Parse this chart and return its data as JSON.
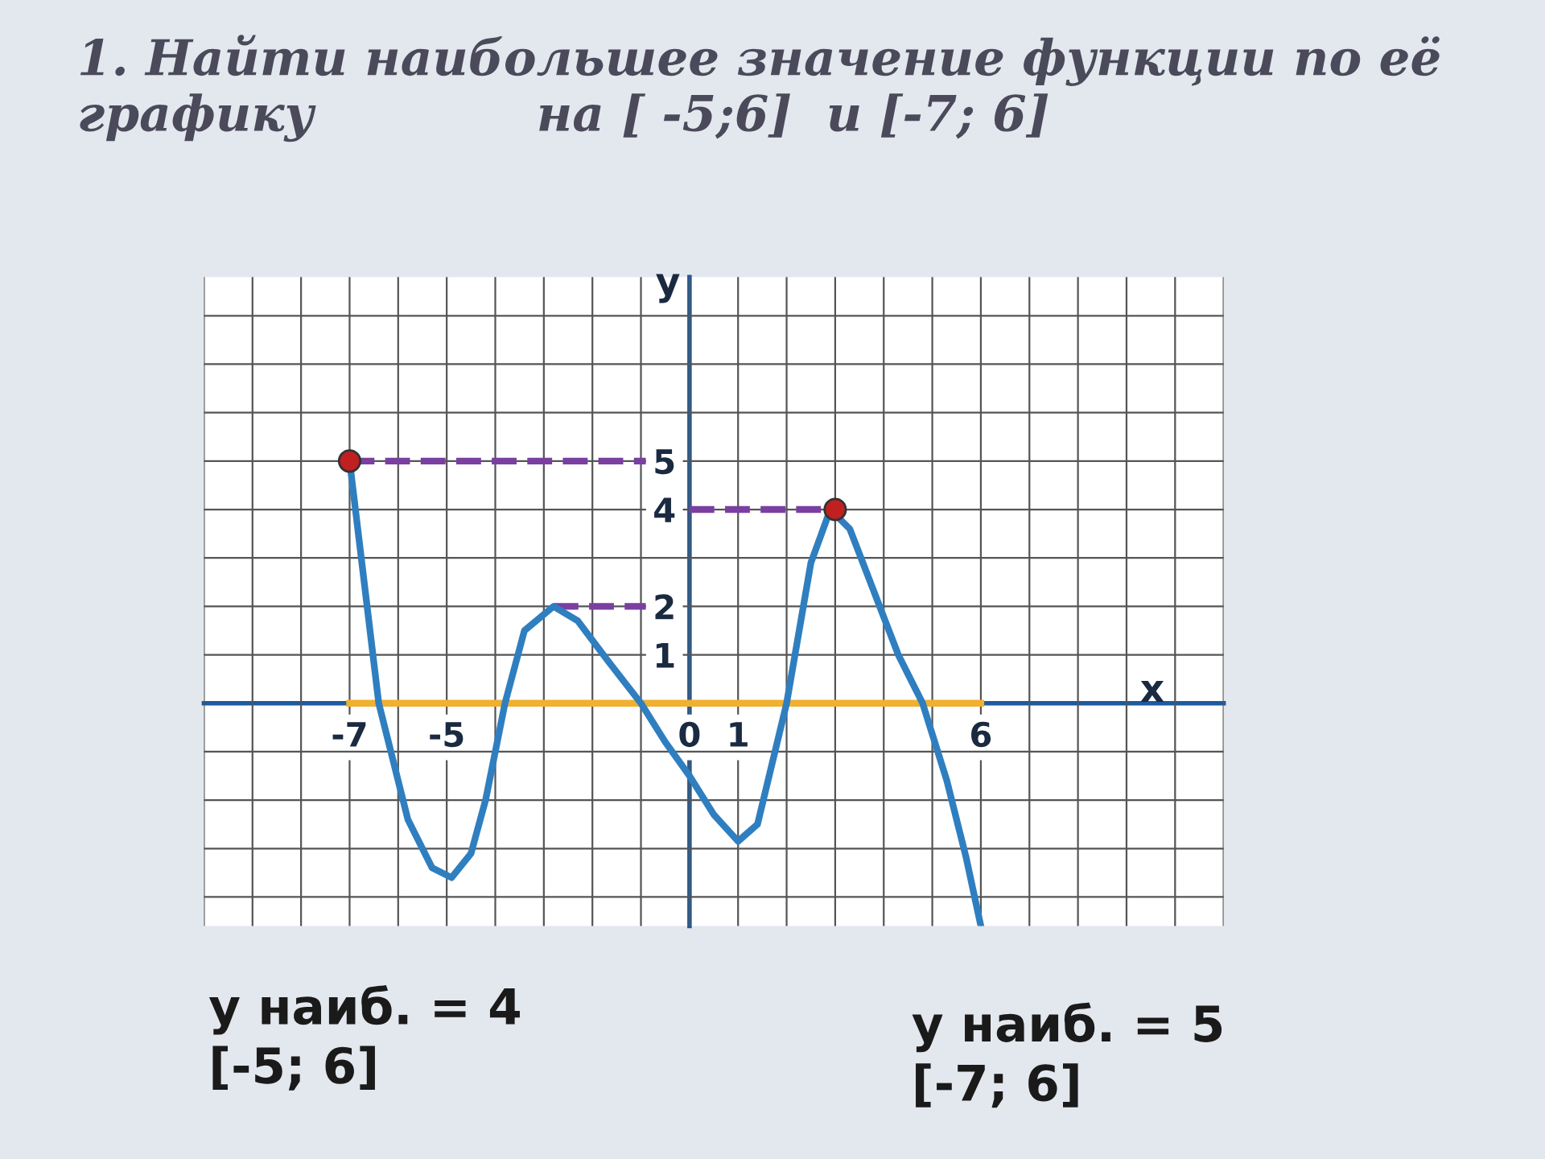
{
  "chart_data": {
    "type": "line",
    "title": "1. Найти наибольшее значение функции по её графику             на [ -5;6]  и [-7; 6]",
    "xlabel": "x",
    "ylabel": "y",
    "xlim": [
      -10,
      11
    ],
    "ylim": [
      -4.6,
      8.8
    ],
    "xticks": [
      {
        "value": -10,
        "label": null
      },
      {
        "value": -9,
        "label": null
      },
      {
        "value": -8,
        "label": null
      },
      -7,
      {
        "value": -6,
        "label": null
      },
      -5,
      {
        "value": -4,
        "label": null
      },
      {
        "value": -3,
        "label": null
      },
      {
        "value": -2,
        "label": null
      },
      {
        "value": -1,
        "label": null
      },
      0,
      1,
      {
        "value": 2,
        "label": null
      },
      {
        "value": 3,
        "label": null
      },
      {
        "value": 4,
        "label": null
      },
      {
        "value": 5,
        "label": null
      },
      6,
      {
        "value": 7,
        "label": null
      },
      {
        "value": 8,
        "label": null
      },
      {
        "value": 9,
        "label": null
      },
      {
        "value": 10,
        "label": null
      },
      {
        "value": 11,
        "label": null
      }
    ],
    "yticks": [
      {
        "value": -4,
        "label": null
      },
      {
        "value": -3,
        "label": null
      },
      {
        "value": -2,
        "label": null
      },
      {
        "value": -1,
        "label": null
      },
      1,
      2,
      {
        "value": 3,
        "label": null
      },
      4,
      5,
      {
        "value": 6,
        "label": null
      },
      {
        "value": 7,
        "label": null
      },
      {
        "value": 8,
        "label": null
      }
    ],
    "grid": true,
    "legend": false,
    "series": [
      {
        "type": "line",
        "color": "#f0b030",
        "x": [
          -7,
          6
        ],
        "values": [
          0,
          0
        ]
      },
      {
        "type": "line",
        "color": "#7a3fa0",
        "line_style": "dashed",
        "x": [
          -7,
          -0.9
        ],
        "values": [
          5,
          5
        ]
      },
      {
        "type": "line",
        "color": "#7a3fa0",
        "line_style": "dashed",
        "x": [
          0,
          3
        ],
        "values": [
          4,
          4
        ]
      },
      {
        "type": "line",
        "color": "#7a3fa0",
        "line_style": "dashed",
        "x": [
          -2.8,
          -0.9
        ],
        "values": [
          2,
          2
        ]
      },
      {
        "type": "line",
        "color": "#2f7fc0",
        "x": [
          -7,
          -6.4,
          -5.8,
          -5.3,
          -4.9,
          -4.5,
          -4.2,
          -3.8,
          -3.4,
          -2.8,
          -2.3,
          -1.7,
          -1.0,
          -0.5,
          0,
          0.5,
          1.0,
          1.4,
          2.0,
          2.5,
          2.9,
          3.3,
          3.8,
          4.3,
          4.8,
          5.3,
          5.7,
          6
        ],
        "values": [
          5,
          0,
          -2.4,
          -3.4,
          -3.6,
          -3.1,
          -2.0,
          0,
          1.5,
          2.0,
          1.7,
          0.9,
          0,
          -0.8,
          -1.5,
          -2.3,
          -2.85,
          -2.5,
          0,
          2.9,
          4.0,
          3.6,
          2.3,
          1.0,
          0,
          -1.6,
          -3.2,
          -4.6
        ]
      },
      {
        "type": "scatter",
        "color": "#c02020",
        "marker": "circle",
        "x": [
          -7,
          3
        ],
        "values": [
          5,
          4
        ]
      }
    ],
    "annotations": [
      "y наиб. = 4\n[-5; 6]",
      "y наиб. = 5\n[-7; 6]"
    ]
  }
}
